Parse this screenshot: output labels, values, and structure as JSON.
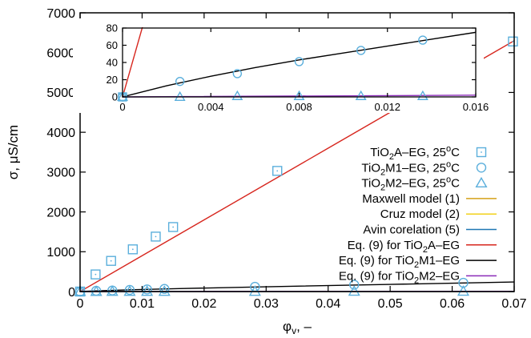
{
  "chart_data": {
    "type": "scatter",
    "xlabel": "φv, –",
    "ylabel": "σ, μS/cm",
    "xlim": [
      0,
      0.07
    ],
    "ylim": [
      0,
      7000
    ],
    "xticks": [
      "0",
      "0.01",
      "0.02",
      "0.03",
      "0.04",
      "0.05",
      "0.06",
      "0.07"
    ],
    "yticks": [
      "0",
      "1000",
      "2000",
      "3000",
      "4000",
      "5000",
      "6000",
      "7000"
    ],
    "legend_position": "lower-right",
    "grid": false,
    "series": [
      {
        "key": "tio2a",
        "name": "TiO2A–EG, 25oC",
        "legend_parts": [
          [
            "TiO",
            ""
          ],
          [
            "2",
            "sub"
          ],
          [
            "A–EG, 25",
            ""
          ],
          [
            "o",
            "sup"
          ],
          [
            "C",
            ""
          ]
        ],
        "kind": "scatter",
        "marker": "square",
        "color": "#5BAFDC",
        "x": [
          0,
          0.0025,
          0.005,
          0.0085,
          0.0122,
          0.015,
          0.0318,
          0.0495,
          0.0698
        ],
        "y": [
          0,
          430,
          770,
          1060,
          1380,
          1620,
          3030,
          4680,
          6280
        ]
      },
      {
        "key": "tio2m1",
        "name": "TiO2M1–EG, 25oC",
        "legend_parts": [
          [
            "TiO",
            ""
          ],
          [
            "2",
            "sub"
          ],
          [
            "M1–EG, 25",
            ""
          ],
          [
            "o",
            "sup"
          ],
          [
            "C",
            ""
          ]
        ],
        "kind": "scatter",
        "marker": "circle",
        "color": "#5BAFDC",
        "x": [
          0,
          0.0026,
          0.0052,
          0.008,
          0.0108,
          0.0136,
          0.0282,
          0.0442,
          0.0618
        ],
        "y": [
          0,
          18,
          27,
          41,
          54,
          66,
          120,
          170,
          220
        ]
      },
      {
        "key": "tio2m2",
        "name": "TiO2M2–EG, 25oC",
        "legend_parts": [
          [
            "TiO",
            ""
          ],
          [
            "2",
            "sub"
          ],
          [
            "M2–EG, 25",
            ""
          ],
          [
            "o",
            "sup"
          ],
          [
            "C",
            ""
          ]
        ],
        "kind": "scatter",
        "marker": "triangle",
        "color": "#5BAFDC",
        "x": [
          0,
          0.0026,
          0.0052,
          0.008,
          0.0108,
          0.0136,
          0.0282,
          0.0442,
          0.0618
        ],
        "y": [
          0,
          0,
          1,
          1,
          1,
          1,
          2,
          3,
          4
        ]
      },
      {
        "key": "maxwell",
        "name": "Maxwell model (1)",
        "legend_parts": [
          [
            "Maxwell model (1)",
            ""
          ]
        ],
        "kind": "line",
        "color": "#D4A017",
        "x": [
          0,
          0.07
        ],
        "y": [
          0,
          0
        ]
      },
      {
        "key": "cruz",
        "name": "Cruz model (2)",
        "legend_parts": [
          [
            "Cruz model (2)",
            ""
          ]
        ],
        "kind": "line",
        "color": "#F2D21B",
        "x": [
          0,
          0.07
        ],
        "y": [
          0,
          0
        ]
      },
      {
        "key": "avin",
        "name": "Avin corelation (5)",
        "legend_parts": [
          [
            "Avin corelation (5)",
            ""
          ]
        ],
        "kind": "line",
        "color": "#1F77B4",
        "x": [
          0,
          0.07
        ],
        "y": [
          0,
          0
        ]
      },
      {
        "key": "eq9a",
        "name": "Eq. (9) for TiO2A–EG",
        "legend_parts": [
          [
            "Eq. (9) for TiO",
            ""
          ],
          [
            "2",
            "sub"
          ],
          [
            "A–EG",
            ""
          ]
        ],
        "kind": "line",
        "color": "#D7261E",
        "x": [
          0,
          0.01,
          0.02,
          0.03,
          0.04,
          0.05,
          0.06,
          0.07
        ],
        "y": [
          0,
          900,
          1800,
          2700,
          3600,
          4500,
          5400,
          6300
        ]
      },
      {
        "key": "eq9m1",
        "name": "Eq. (9) for TiO2M1–EG",
        "legend_parts": [
          [
            "Eq. (9) for TiO",
            ""
          ],
          [
            "2",
            "sub"
          ],
          [
            "M1–EG",
            ""
          ]
        ],
        "kind": "line",
        "color": "#000000",
        "x": [
          0,
          0.002,
          0.004,
          0.006,
          0.008,
          0.01,
          0.012,
          0.014,
          0.016,
          0.03,
          0.05,
          0.07
        ],
        "y": [
          0,
          13,
          24,
          34,
          43,
          51,
          59,
          67,
          75,
          120,
          180,
          240
        ]
      },
      {
        "key": "eq9m2",
        "name": "Eq. (9) for TiO2M2–EG",
        "legend_parts": [
          [
            "Eq. (9) for TiO",
            ""
          ],
          [
            "2",
            "sub"
          ],
          [
            "M2–EG",
            ""
          ]
        ],
        "kind": "line",
        "color": "#8B2BB9",
        "x": [
          0,
          0.016,
          0.07
        ],
        "y": [
          0,
          2,
          6
        ]
      }
    ],
    "inset": {
      "xlim": [
        0,
        0.016
      ],
      "ylim": [
        0,
        80
      ],
      "xticks": [
        "0",
        "0.004",
        "0.008",
        "0.012",
        "0.016"
      ],
      "yticks": [
        "0",
        "20",
        "40",
        "60",
        "80"
      ],
      "series": [
        "tio2a",
        "tio2m1",
        "tio2m2",
        "eq9a",
        "eq9m1",
        "eq9m2"
      ]
    }
  }
}
